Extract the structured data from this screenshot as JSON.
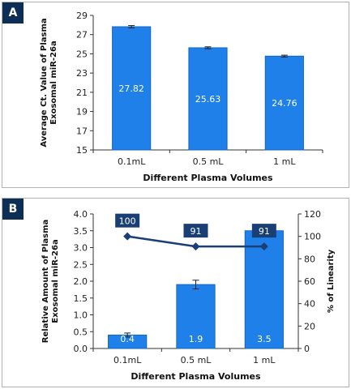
{
  "chart_data": [
    {
      "panel": "A",
      "type": "bar",
      "categories": [
        "0.1mL",
        "0.5 mL",
        "1 mL"
      ],
      "values": [
        27.82,
        25.63,
        24.76
      ],
      "errors": [
        0.12,
        0.1,
        0.1
      ],
      "value_labels": [
        "27.82",
        "25.63",
        "24.76"
      ],
      "xlabel": "Different Plasma Volumes",
      "ylabel": "Average Ct. Value of Plasma Exosomal miR-26a",
      "ylim": [
        15,
        29
      ],
      "yticks": [
        "15",
        "17",
        "19",
        "21",
        "23",
        "25",
        "27",
        "29"
      ],
      "grid": false,
      "bar_color": "#1e80e8"
    },
    {
      "panel": "B",
      "type": "bar",
      "categories": [
        "0.1mL",
        "0.5 mL",
        "1 mL"
      ],
      "values": [
        0.4,
        1.9,
        3.5
      ],
      "errors": [
        0.06,
        0.13,
        0.1
      ],
      "value_labels": [
        "0.4",
        "1.9",
        "3.5"
      ],
      "xlabel": "Different Plasma Volumes",
      "ylabel": "Relative Amount of Plasma Exosomal miR-26a",
      "ylim": [
        0,
        4
      ],
      "yticks": [
        "0.0",
        "0.5",
        "1.0",
        "1.5",
        "2.0",
        "2.5",
        "3.0",
        "3.5",
        "4.0"
      ],
      "y2label": "% of Linearity",
      "y2lim": [
        0,
        120
      ],
      "y2ticks": [
        "0",
        "20",
        "40",
        "60",
        "80",
        "100",
        "120"
      ],
      "line_values": [
        100,
        91,
        91
      ],
      "line_labels": [
        "100",
        "91",
        "91"
      ],
      "grid": false,
      "bar_color": "#1e80e8",
      "line_color": "#1a3f75"
    }
  ]
}
